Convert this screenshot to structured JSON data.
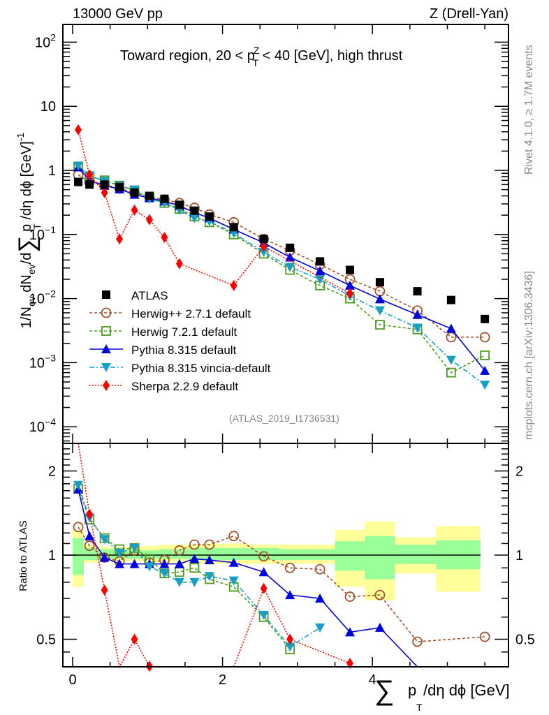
{
  "header": {
    "left": "13000 GeV pp",
    "right": "Z (Drell-Yan)"
  },
  "side_labels": {
    "rivet": "Rivet 4.1.0, ≥ 1.7M events",
    "mcplots": "mcplots.cern.ch [arXiv:1306.3436]"
  },
  "watermark": "(ATLAS_2019_I1736531)",
  "chart_data": [
    {
      "type": "scatter",
      "panel": "main",
      "title": "Toward region, 20 < p_T^Z < 40 [GeV], high thrust",
      "title_parts": {
        "pre": "Toward region, 20 < p",
        "sub": "T",
        "sup": "Z",
        "post": " < 40 [GeV], high thrust"
      },
      "xlabel": "∑ p_T /dη dϕ [GeV]",
      "ylabel": "1/N_ev dN_ev/d∑ p_T /dη dϕ [GeV]^-1",
      "yscale": "log",
      "ylim": [
        6e-05,
        200
      ],
      "xlim": [
        -0.13,
        5.8
      ],
      "ytick_labels": [
        "10^-4",
        "10^-3",
        "10^-2",
        "10^-1",
        "1",
        "10",
        "10^2"
      ],
      "ytick_values": [
        0.0001,
        0.001,
        0.01,
        0.1,
        1,
        10,
        100
      ],
      "xtick_labels": [
        "0",
        "2",
        "4"
      ],
      "xtick_values": [
        0,
        2,
        4
      ],
      "legend_position": "lower-left",
      "x": [
        0.075,
        0.225,
        0.425,
        0.625,
        0.825,
        1.025,
        1.225,
        1.425,
        1.625,
        1.825,
        2.15,
        2.55,
        2.9,
        3.3,
        3.7,
        4.1,
        4.6,
        5.05,
        5.5
      ],
      "series": [
        {
          "name": "ATLAS",
          "color": "#000000",
          "marker": "square",
          "dash": "none",
          "values": [
            0.66,
            0.6,
            0.6,
            0.55,
            0.45,
            0.4,
            0.36,
            0.29,
            0.235,
            0.19,
            0.13,
            0.085,
            0.062,
            0.038,
            0.028,
            0.018,
            0.013,
            0.0095,
            0.0048
          ]
        },
        {
          "name": "Herwig++ 2.7.1 default",
          "color": "#a0522d",
          "marker": "circle-open",
          "dash": "4,3",
          "values": [
            0.85,
            0.65,
            0.6,
            0.52,
            0.45,
            0.38,
            0.35,
            0.31,
            0.26,
            0.205,
            0.155,
            0.085,
            0.056,
            0.034,
            0.02,
            0.013,
            0.0065,
            0.0025,
            0.0025
          ]
        },
        {
          "name": "Herwig 7.2.1 default",
          "color": "#4d9a1c",
          "marker": "square-open",
          "dash": "4,3",
          "values": [
            1.15,
            0.8,
            0.7,
            0.58,
            0.48,
            0.38,
            0.31,
            0.25,
            0.19,
            0.155,
            0.1,
            0.05,
            0.028,
            0.016,
            0.01,
            0.0039,
            0.0033,
            0.0007,
            0.0013
          ]
        },
        {
          "name": "Pythia 8.315 default",
          "color": "#0000dd",
          "marker": "triangle-up",
          "dash": "none",
          "values": [
            1.12,
            0.7,
            0.58,
            0.51,
            0.42,
            0.37,
            0.33,
            0.28,
            0.22,
            0.18,
            0.12,
            0.074,
            0.044,
            0.027,
            0.016,
            0.0098,
            0.0056,
            0.0034,
            0.00075
          ]
        },
        {
          "name": "Pythia 8.315 vincia-default",
          "color": "#1a9fc4",
          "marker": "triangle-down",
          "dash": "7,3,2,3",
          "values": [
            1.18,
            0.83,
            0.68,
            0.57,
            0.5,
            0.36,
            0.31,
            0.24,
            0.18,
            0.16,
            0.105,
            0.053,
            0.031,
            0.02,
            0.011,
            0.0065,
            0.0035,
            0.0011,
            0.00045
          ]
        },
        {
          "name": "Sherpa 2.2.9 default",
          "color": "#ff0000",
          "marker": "diamond",
          "dash": "2,2",
          "values": [
            4.3,
            0.85,
            0.45,
            0.085,
            0.24,
            0.17,
            0.09,
            0.035,
            null,
            null,
            0.016,
            0.065,
            null,
            null,
            0.012,
            null,
            null,
            null,
            null
          ]
        }
      ]
    },
    {
      "type": "scatter",
      "panel": "ratio",
      "ylabel": "Ratio to ATLAS",
      "yscale": "log",
      "ylim": [
        0.42,
        2.48
      ],
      "ytick_labels": [
        "0.5",
        "1",
        "2"
      ],
      "ytick_values": [
        0.5,
        1,
        2
      ],
      "reference_line": 1,
      "band_edges": [
        0,
        0.15,
        0.35,
        0.55,
        0.75,
        0.95,
        1.15,
        1.35,
        1.55,
        1.75,
        1.95,
        2.35,
        2.75,
        3.1,
        3.5,
        3.9,
        4.3,
        4.85,
        5.25,
        5.75
      ],
      "band_1sigma": [
        [
          0.85,
          1.15
        ],
        [
          0.96,
          1.06
        ],
        [
          0.97,
          1.05
        ],
        [
          0.97,
          1.04
        ],
        [
          0.97,
          1.04
        ],
        [
          0.97,
          1.04
        ],
        [
          0.97,
          1.05
        ],
        [
          0.97,
          1.05
        ],
        [
          0.96,
          1.06
        ],
        [
          0.96,
          1.06
        ],
        [
          0.96,
          1.06
        ],
        [
          0.96,
          1.06
        ],
        [
          0.96,
          1.05
        ],
        [
          0.96,
          1.05
        ],
        [
          0.88,
          1.12
        ],
        [
          0.82,
          1.17
        ],
        [
          0.93,
          1.09
        ],
        [
          0.89,
          1.13
        ],
        [
          0.89,
          1.13
        ]
      ],
      "band_2sigma": [
        [
          0.77,
          1.23
        ],
        [
          0.94,
          1.09
        ],
        [
          0.95,
          1.07
        ],
        [
          0.95,
          1.07
        ],
        [
          0.95,
          1.07
        ],
        [
          0.94,
          1.08
        ],
        [
          0.94,
          1.09
        ],
        [
          0.94,
          1.09
        ],
        [
          0.93,
          1.09
        ],
        [
          0.93,
          1.1
        ],
        [
          0.93,
          1.1
        ],
        [
          0.93,
          1.09
        ],
        [
          0.93,
          1.09
        ],
        [
          0.93,
          1.09
        ],
        [
          0.77,
          1.23
        ],
        [
          0.69,
          1.32
        ],
        [
          0.86,
          1.16
        ],
        [
          0.74,
          1.27
        ],
        [
          0.74,
          1.27
        ]
      ],
      "series": [
        {
          "name": "Herwig++ 2.7.1 default",
          "values": [
            1.26,
            1.08,
            0.98,
            0.95,
            1.04,
            0.94,
            0.96,
            1.04,
            1.09,
            1.09,
            1.17,
            0.99,
            0.9,
            0.89,
            0.71,
            0.72,
            0.49,
            null,
            0.51
          ]
        },
        {
          "name": "Herwig 7.2.1 default",
          "values": [
            1.73,
            1.34,
            1.15,
            1.05,
            1.06,
            0.97,
            0.86,
            0.87,
            0.9,
            0.82,
            0.77,
            0.6,
            0.46,
            null,
            null,
            null,
            null,
            null,
            null
          ]
        },
        {
          "name": "Pythia 8.315 default",
          "values": [
            1.72,
            1.17,
            0.98,
            0.93,
            0.93,
            0.93,
            0.93,
            0.93,
            0.97,
            0.96,
            0.94,
            0.87,
            0.72,
            0.7,
            0.53,
            0.55,
            0.39,
            null,
            null
          ]
        },
        {
          "name": "Pythia 8.315 vincia-default",
          "values": [
            1.78,
            1.36,
            1.14,
            1.02,
            1.06,
            0.91,
            0.86,
            0.8,
            0.8,
            0.84,
            0.81,
            0.61,
            0.47,
            0.55,
            null,
            null,
            null,
            null,
            null
          ]
        },
        {
          "name": "Sherpa 2.2.9 default",
          "values": [
            6.5,
            1.4,
            0.75,
            0.15,
            0.5,
            0.4,
            0.25,
            0.12,
            null,
            null,
            0.12,
            0.76,
            0.5,
            null,
            0.41,
            null,
            null,
            null,
            null
          ]
        }
      ],
      "xlabel": "∑ p_T /dη dϕ [GeV]"
    }
  ]
}
